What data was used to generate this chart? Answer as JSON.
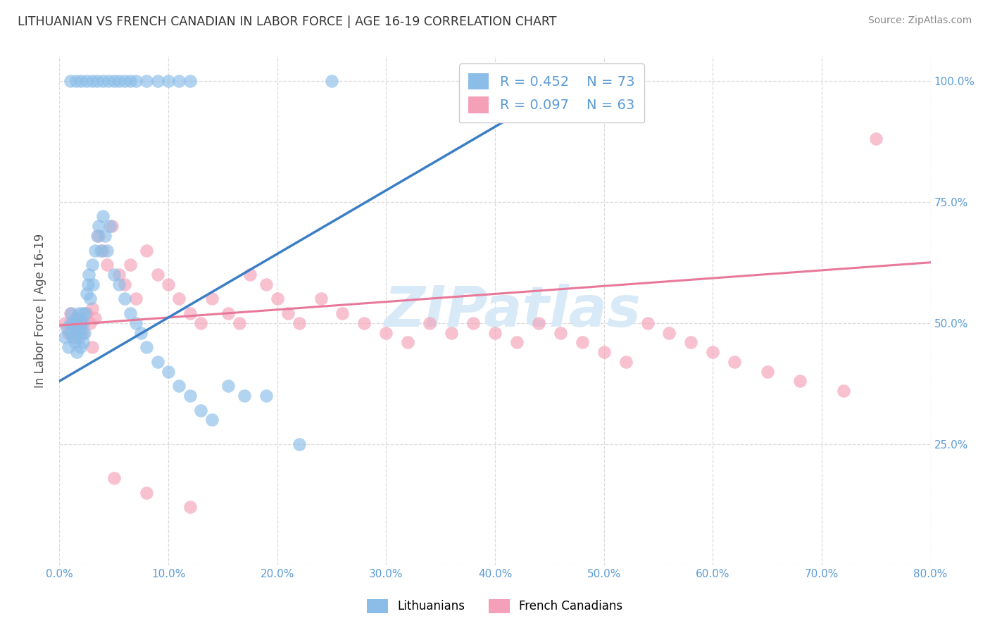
{
  "title": "LITHUANIAN VS FRENCH CANADIAN IN LABOR FORCE | AGE 16-19 CORRELATION CHART",
  "source": "Source: ZipAtlas.com",
  "ylabel": "In Labor Force | Age 16-19",
  "legend_label1": "Lithuanians",
  "legend_label2": "French Canadians",
  "R1": 0.452,
  "N1": 73,
  "R2": 0.097,
  "N2": 63,
  "color_blue": "#8BBDE8",
  "color_pink": "#F4A0B8",
  "line_blue": "#3A7EC6",
  "line_pink": "#E8789A",
  "watermark": "ZIPatlas",
  "watermark_color": "#D8EAF8",
  "background_color": "#FFFFFF",
  "grid_color": "#DCDCDC",
  "xlim": [
    0.0,
    0.8
  ],
  "ylim": [
    0.0,
    1.05
  ],
  "x_ticks": [
    0.0,
    0.1,
    0.2,
    0.3,
    0.4,
    0.5,
    0.6,
    0.7,
    0.8
  ],
  "y_ticks": [
    0.0,
    0.25,
    0.5,
    0.75,
    1.0
  ],
  "tick_color": "#5B9BD5",
  "blue_line_x": [
    0.0,
    0.48
  ],
  "blue_line_y": [
    0.38,
    1.01
  ],
  "pink_line_x": [
    0.0,
    0.8
  ],
  "pink_line_y": [
    0.495,
    0.625
  ],
  "blue_x": [
    0.005,
    0.007,
    0.008,
    0.01,
    0.01,
    0.011,
    0.012,
    0.013,
    0.014,
    0.015,
    0.015,
    0.016,
    0.017,
    0.018,
    0.018,
    0.019,
    0.02,
    0.02,
    0.021,
    0.022,
    0.022,
    0.023,
    0.024,
    0.025,
    0.026,
    0.027,
    0.028,
    0.03,
    0.031,
    0.033,
    0.035,
    0.036,
    0.038,
    0.04,
    0.042,
    0.044,
    0.046,
    0.05,
    0.055,
    0.06,
    0.065,
    0.07,
    0.075,
    0.08,
    0.09,
    0.1,
    0.11,
    0.12,
    0.13,
    0.14,
    0.155,
    0.17,
    0.19,
    0.22,
    0.01,
    0.015,
    0.02,
    0.025,
    0.03,
    0.035,
    0.04,
    0.045,
    0.05,
    0.055,
    0.06,
    0.065,
    0.07,
    0.08,
    0.09,
    0.1,
    0.11,
    0.12,
    0.25
  ],
  "blue_y": [
    0.47,
    0.49,
    0.45,
    0.5,
    0.48,
    0.52,
    0.47,
    0.5,
    0.46,
    0.49,
    0.51,
    0.44,
    0.48,
    0.47,
    0.52,
    0.45,
    0.5,
    0.48,
    0.52,
    0.46,
    0.5,
    0.48,
    0.52,
    0.56,
    0.58,
    0.6,
    0.55,
    0.62,
    0.58,
    0.65,
    0.68,
    0.7,
    0.65,
    0.72,
    0.68,
    0.65,
    0.7,
    0.6,
    0.58,
    0.55,
    0.52,
    0.5,
    0.48,
    0.45,
    0.42,
    0.4,
    0.37,
    0.35,
    0.32,
    0.3,
    0.37,
    0.35,
    0.35,
    0.25,
    1.0,
    1.0,
    1.0,
    1.0,
    1.0,
    1.0,
    1.0,
    1.0,
    1.0,
    1.0,
    1.0,
    1.0,
    1.0,
    1.0,
    1.0,
    1.0,
    1.0,
    1.0,
    1.0
  ],
  "pink_x": [
    0.005,
    0.008,
    0.01,
    0.012,
    0.014,
    0.016,
    0.018,
    0.02,
    0.022,
    0.025,
    0.028,
    0.03,
    0.033,
    0.036,
    0.04,
    0.044,
    0.048,
    0.055,
    0.06,
    0.065,
    0.07,
    0.08,
    0.09,
    0.1,
    0.11,
    0.12,
    0.13,
    0.14,
    0.155,
    0.165,
    0.175,
    0.19,
    0.2,
    0.21,
    0.22,
    0.24,
    0.26,
    0.28,
    0.3,
    0.32,
    0.34,
    0.36,
    0.38,
    0.4,
    0.42,
    0.44,
    0.46,
    0.48,
    0.5,
    0.52,
    0.54,
    0.56,
    0.58,
    0.6,
    0.62,
    0.65,
    0.68,
    0.72,
    0.75,
    0.03,
    0.05,
    0.08,
    0.12
  ],
  "pink_y": [
    0.5,
    0.48,
    0.52,
    0.5,
    0.47,
    0.51,
    0.49,
    0.5,
    0.48,
    0.52,
    0.5,
    0.53,
    0.51,
    0.68,
    0.65,
    0.62,
    0.7,
    0.6,
    0.58,
    0.62,
    0.55,
    0.65,
    0.6,
    0.58,
    0.55,
    0.52,
    0.5,
    0.55,
    0.52,
    0.5,
    0.6,
    0.58,
    0.55,
    0.52,
    0.5,
    0.55,
    0.52,
    0.5,
    0.48,
    0.46,
    0.5,
    0.48,
    0.5,
    0.48,
    0.46,
    0.5,
    0.48,
    0.46,
    0.44,
    0.42,
    0.5,
    0.48,
    0.46,
    0.44,
    0.42,
    0.4,
    0.38,
    0.36,
    0.88,
    0.45,
    0.18,
    0.15,
    0.12
  ]
}
